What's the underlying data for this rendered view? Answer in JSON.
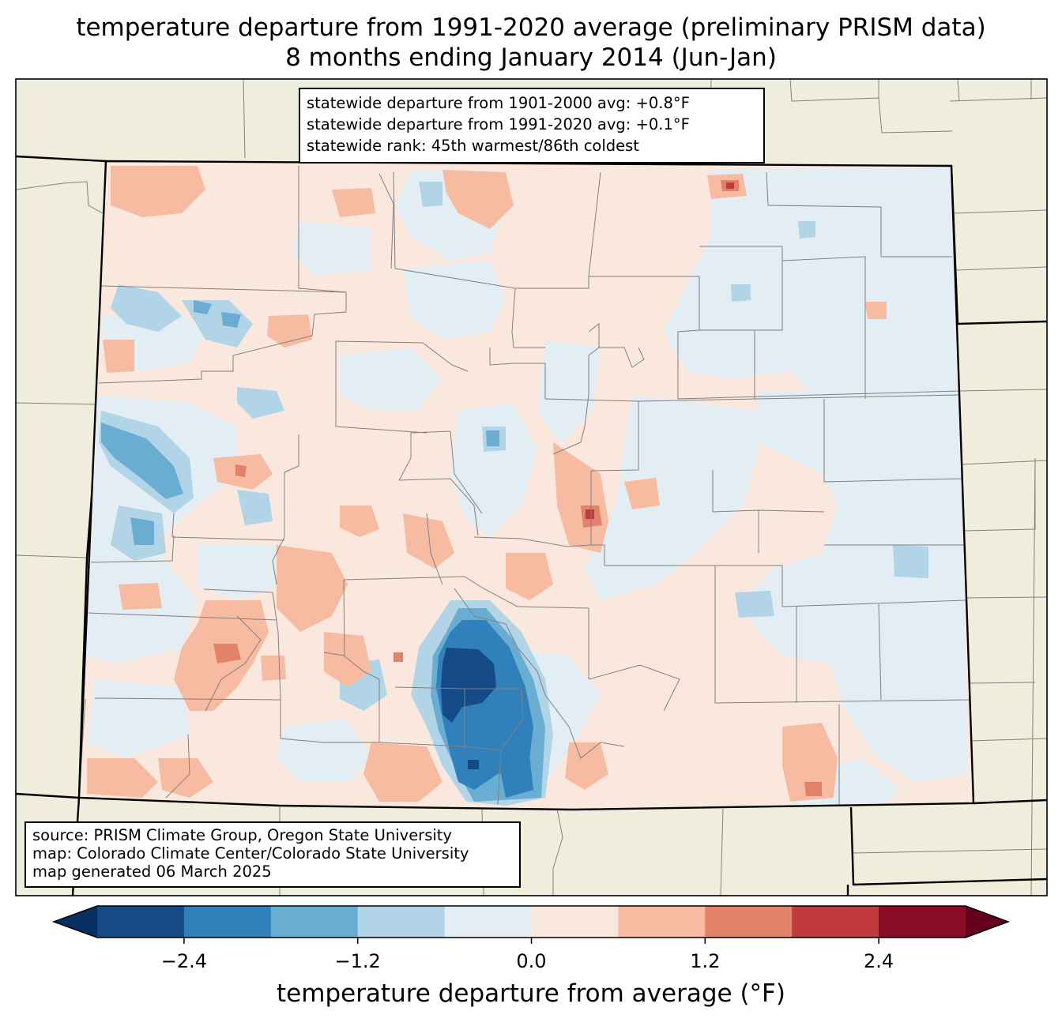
{
  "title": {
    "line1": "temperature departure from 1991-2020 average (preliminary PRISM data)",
    "line2": "8 months ending January 2014 (Jun-Jan)"
  },
  "stats_box": {
    "line1": "statewide departure from 1901-2000 avg: +0.8°F",
    "line2": "statewide departure from 1991-2020 avg: +0.1°F",
    "line3": "statewide rank: 45th warmest/86th coldest"
  },
  "source_box": {
    "line1": "source: PRISM Climate Group, Oregon State University",
    "line2": "map: Colorado Climate Center/Colorado State University",
    "line3": "map generated 06 March 2025"
  },
  "colorbar": {
    "label": "temperature departure from average (°F)",
    "ticks": [
      "−2.4",
      "−1.2",
      "0.0",
      "1.2",
      "2.4"
    ],
    "tick_values": [
      -2.4,
      -1.2,
      0.0,
      1.2,
      2.4
    ],
    "range": [
      -3.0,
      3.0
    ],
    "bin_edges": [
      -3.0,
      -2.4,
      -1.8,
      -1.2,
      -0.6,
      0.0,
      0.6,
      1.2,
      1.8,
      2.4,
      3.0
    ],
    "colors": [
      "#053061",
      "#144a86",
      "#3080bc",
      "#6aadd3",
      "#b1d4e7",
      "#e3edf4",
      "#fae8df",
      "#f7bba2",
      "#e2826a",
      "#c13b3d",
      "#890c26",
      "#67001f"
    ]
  },
  "map": {
    "land_color": "#efeddb",
    "state_border_color": "#000000",
    "county_border_color": "#808080"
  }
}
